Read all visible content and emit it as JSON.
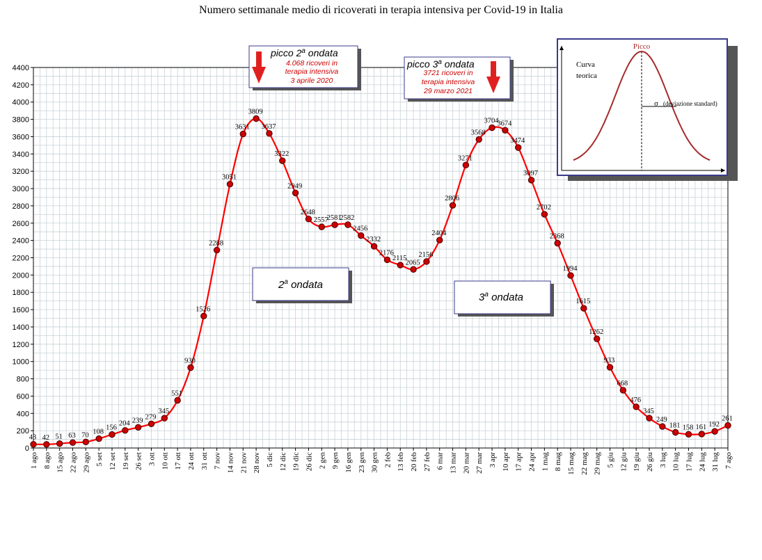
{
  "chart_data": {
    "type": "line",
    "title": "Numero settimanale medio di ricoverati in terapia intensiva per Covid-19 in Italia",
    "categories": [
      "1 ago",
      "8 ago",
      "15 ago",
      "22 ago",
      "29 ago",
      "5 set",
      "12 set",
      "19 set",
      "26 set",
      "3 ott",
      "10 ott",
      "17 ott",
      "24 ott",
      "31 ott",
      "7 nov",
      "14 nov",
      "21 nov",
      "28 nov",
      "5 dic",
      "12 dic",
      "19 dic",
      "26 dic",
      "2 gen",
      "9 gen",
      "16 gen",
      "23 gen",
      "30 gen",
      "2 feb",
      "13 feb",
      "20 feb",
      "27 feb",
      "6 mar",
      "13 mar",
      "20 mar",
      "27 mar",
      "3 apr",
      "10 apr",
      "17 apr",
      "24 apr",
      "1 mag",
      "8 mag",
      "15 mag",
      "22 mag",
      "29 mag",
      "5 giu",
      "12 giu",
      "19 giu",
      "26 giu",
      "3 lug",
      "10 lug",
      "17 lug",
      "24 lug",
      "31 lug",
      "7 ago"
    ],
    "series": [
      {
        "values": [
          43,
          42,
          51,
          63,
          70,
          108,
          156,
          204,
          239,
          279,
          345,
          551,
          930,
          1526,
          2288,
          3051,
          3631,
          3809,
          3637,
          3322,
          2949,
          2648,
          2557,
          2581,
          2582,
          2456,
          2332,
          2176,
          2115,
          2065,
          2156,
          2404,
          2806,
          3271,
          3568,
          3704,
          3674,
          3474,
          3097,
          2702,
          2368,
          1994,
          1615,
          1262,
          933,
          668,
          476,
          345,
          249,
          181,
          158,
          161,
          192,
          261
        ],
        "labels": [
          "43",
          "42",
          "51",
          "63",
          "70",
          "108",
          "156",
          "204",
          "239",
          "279",
          "345",
          "551",
          "930",
          "1526",
          "2288",
          "3051",
          "3631",
          "3809",
          "3637",
          "3322",
          "2949",
          "2648",
          "2557",
          "2581",
          "2582",
          "2456",
          "2332",
          "2176",
          "2115",
          "2065",
          "2156",
          "2404",
          "2806",
          "3271",
          "3568",
          "3704",
          "3674",
          "3474",
          "3097",
          "2702",
          "2368",
          "1994",
          "1615",
          "1262",
          "933",
          "668",
          "476",
          "345",
          "249",
          "181",
          "158",
          "161",
          "192",
          "261"
        ]
      }
    ],
    "ylim": [
      0,
      4400
    ],
    "yticks": [
      "0",
      "200",
      "400",
      "600",
      "800",
      "1000",
      "1200",
      "1400",
      "1600",
      "1800",
      "2000",
      "2200",
      "2400",
      "2600",
      "2800",
      "3000",
      "3200",
      "3400",
      "3600",
      "3800",
      "4000",
      "4200",
      "4400"
    ],
    "grid": true,
    "line_color": "#ff0000",
    "marker_color": "#cc0000",
    "annotations": {
      "peak2": {
        "title_main": "picco 2",
        "title_sup": "a",
        "title_rest": " ondata",
        "line1": "4.068 ricoveri in",
        "line2": "terapia intensiva",
        "line3": "3 aprile 2020"
      },
      "peak3": {
        "title_main": "picco 3",
        "title_sup": "a",
        "title_rest": " ondata",
        "line1": "3721 ricoveri in",
        "line2": "terapia intensiva",
        "line3": "29 marzo 2021"
      },
      "wave2": {
        "main": "2",
        "sup": "a",
        "rest": " ondata"
      },
      "wave3": {
        "main": "3",
        "sup": "a",
        "rest": " ondata"
      }
    },
    "inset": {
      "peak_label": "Picco",
      "curve_line1": "Curva",
      "curve_line2": "teorica",
      "sigma_symbol": "σ",
      "sigma_text": "(deviazione standard)"
    }
  }
}
